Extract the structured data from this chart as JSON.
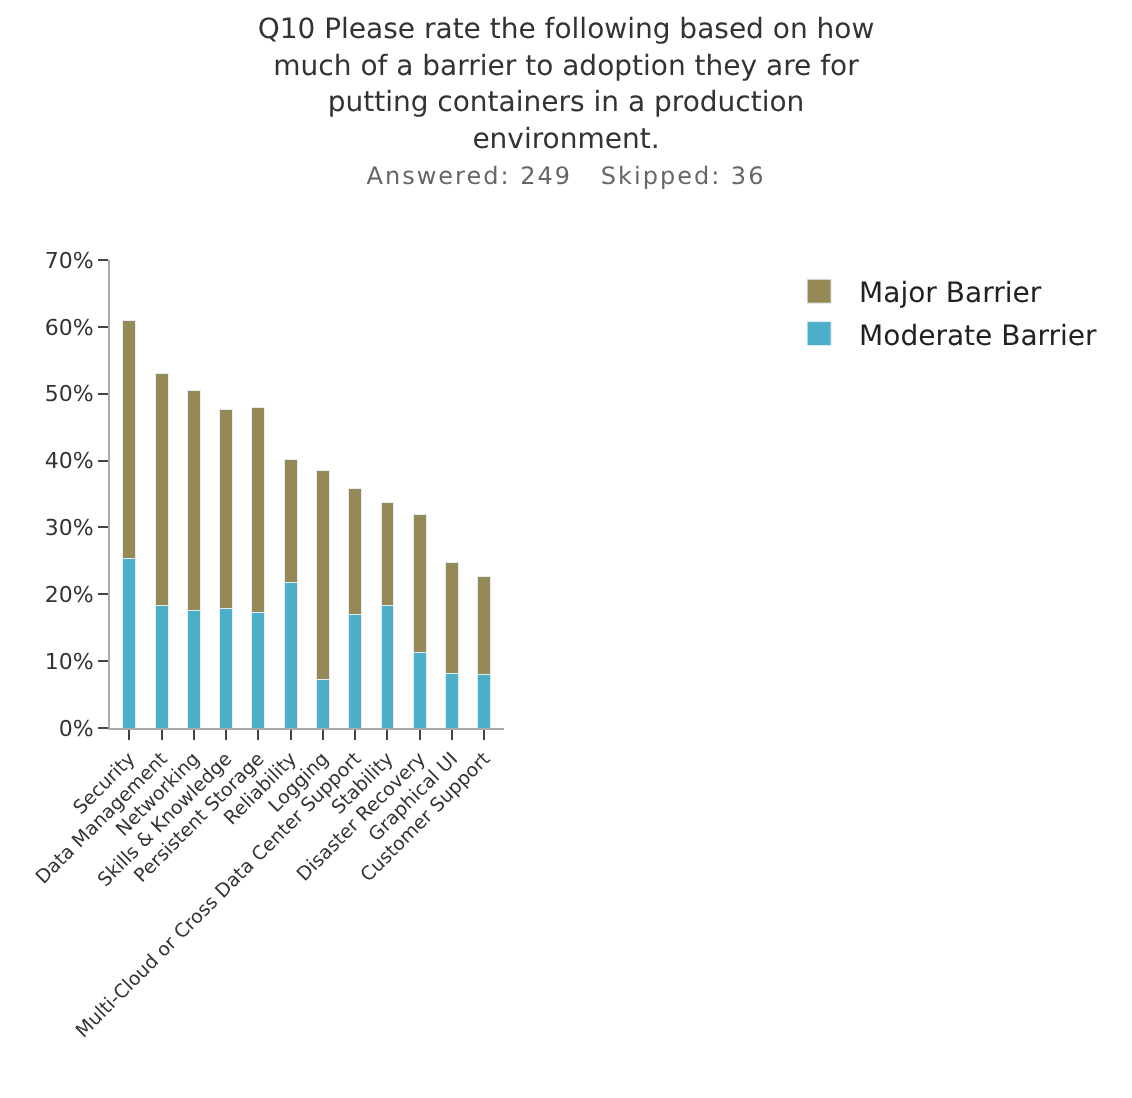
{
  "chart_data": {
    "type": "bar",
    "title": "Q10 Please rate the following based on how much of a barrier to adoption they are for putting containers in a production environment.",
    "subtitle": "Answered: 249   Skipped: 36",
    "categories": [
      "Security",
      "Data Management",
      "Networking",
      "Skills & Knowledge",
      "Persistent Storage",
      "Reliability",
      "Logging",
      "Multi-Cloud or Cross Data Center Support",
      "Stability",
      "Disaster Recovery",
      "Graphical UI",
      "Customer Support"
    ],
    "stacked": true,
    "series": [
      {
        "name": "Moderate Barrier",
        "color": "#4bafc9",
        "values": [
          25.3,
          18.3,
          17.6,
          17.9,
          17.3,
          21.8,
          7.3,
          17.0,
          18.3,
          11.3,
          8.2,
          8.0
        ]
      },
      {
        "name": "Major Barrier",
        "color": "#958a55",
        "values": [
          35.7,
          34.7,
          32.9,
          29.8,
          30.7,
          18.4,
          31.2,
          18.8,
          15.4,
          20.7,
          16.6,
          14.6
        ]
      }
    ],
    "ylim": [
      0,
      70
    ],
    "yticks": [
      {
        "value": 0,
        "label": "0%"
      },
      {
        "value": 10,
        "label": "10%"
      },
      {
        "value": 20,
        "label": "20%"
      },
      {
        "value": 30,
        "label": "30%"
      },
      {
        "value": 40,
        "label": "40%"
      },
      {
        "value": 50,
        "label": "50%"
      },
      {
        "value": 60,
        "label": "60%"
      },
      {
        "value": 70,
        "label": "70%"
      }
    ],
    "legend": "top right"
  }
}
